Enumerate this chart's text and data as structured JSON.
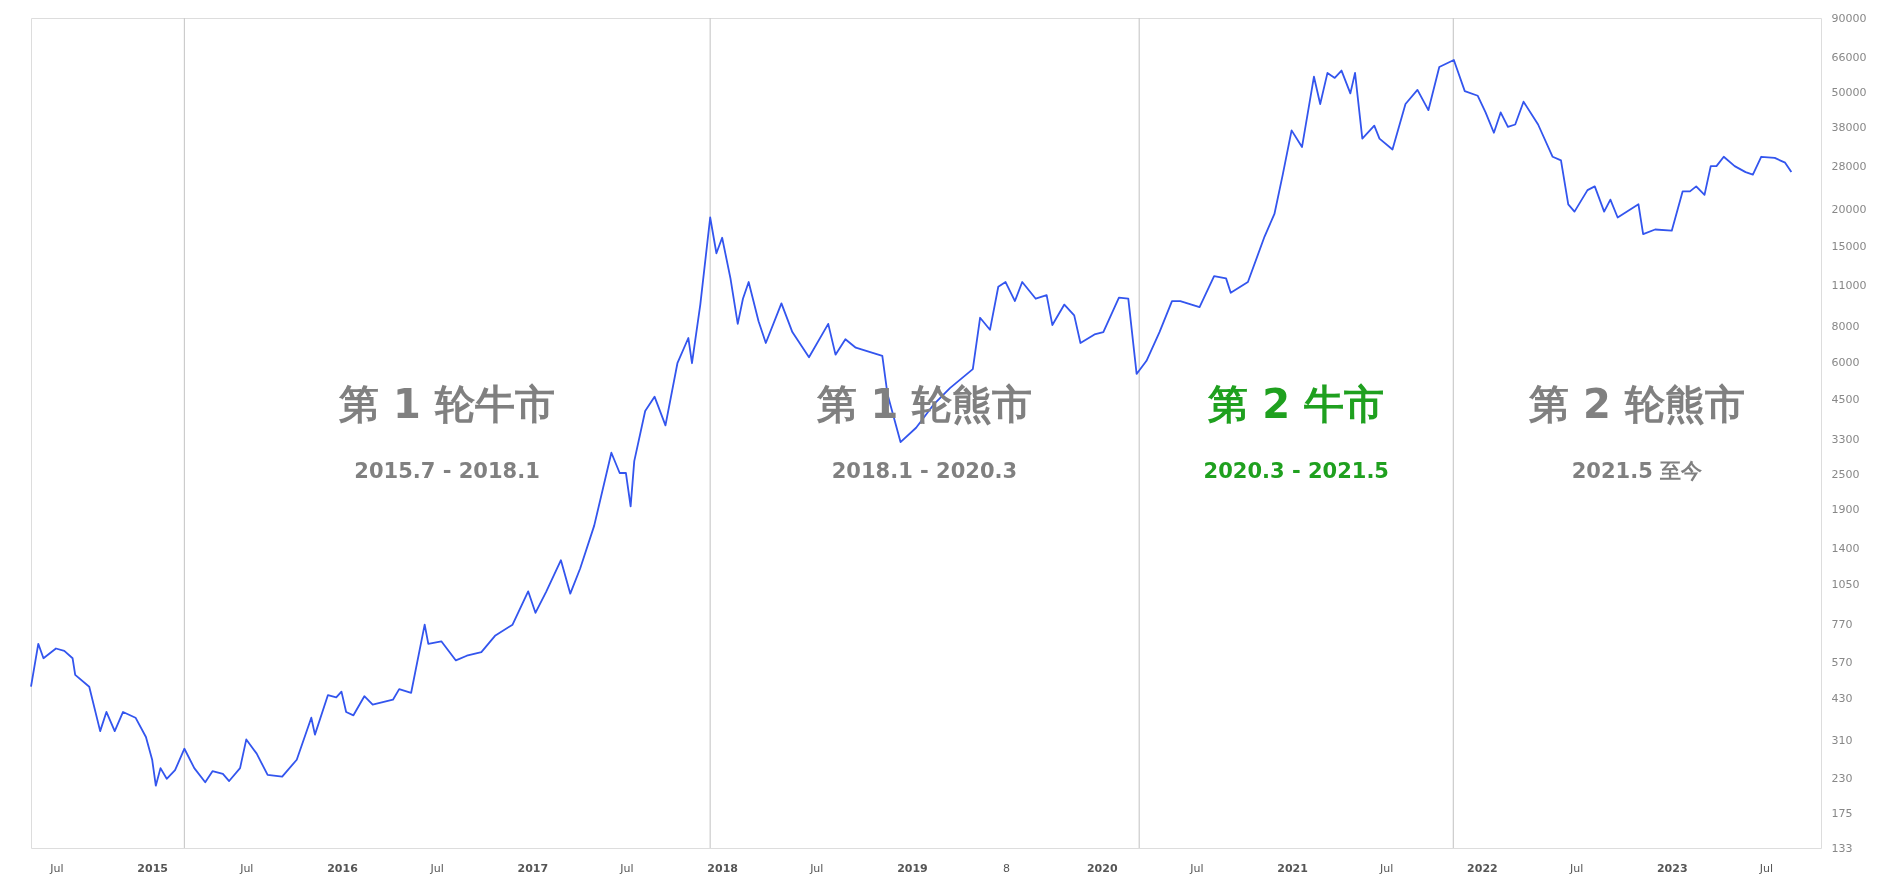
{
  "chart_data": {
    "type": "line",
    "log": "y",
    "x": [
      "2014-05-13",
      "2014-05-27",
      "2014-06-06",
      "2014-06-30",
      "2014-07-16",
      "2014-08-01",
      "2014-08-06",
      "2014-09-02",
      "2014-09-23",
      "2014-10-05",
      "2014-10-21",
      "2014-11-06",
      "2014-11-30",
      "2014-12-20",
      "2015-01-01",
      "2015-01-08",
      "2015-01-17",
      "2015-01-29",
      "2015-02-14",
      "2015-03-04",
      "2015-03-23",
      "2015-04-13",
      "2015-04-27",
      "2015-05-17",
      "2015-05-29",
      "2015-06-19",
      "2015-07-01",
      "2015-07-21",
      "2015-08-11",
      "2015-09-08",
      "2015-10-06",
      "2015-11-03",
      "2015-11-10",
      "2015-12-05",
      "2015-12-21",
      "2015-12-31",
      "2016-01-09",
      "2016-01-23",
      "2016-02-13",
      "2016-02-29",
      "2016-04-08",
      "2016-04-20",
      "2016-05-13",
      "2016-06-08",
      "2016-06-15",
      "2016-07-10",
      "2016-08-07",
      "2016-08-28",
      "2016-09-25",
      "2016-10-22",
      "2016-11-24",
      "2016-12-24",
      "2017-01-07",
      "2017-01-28",
      "2017-02-25",
      "2017-03-15",
      "2017-04-03",
      "2017-04-30",
      "2017-06-02",
      "2017-06-18",
      "2017-06-30",
      "2017-07-09",
      "2017-07-16",
      "2017-08-06",
      "2017-08-24",
      "2017-09-14",
      "2017-10-07",
      "2017-10-28",
      "2017-11-04",
      "2017-11-20",
      "2017-12-09",
      "2017-12-21",
      "2018-01-01",
      "2018-01-17",
      "2018-01-31",
      "2018-02-10",
      "2018-02-21",
      "2018-03-12",
      "2018-03-26",
      "2018-04-25",
      "2018-05-16",
      "2018-06-17",
      "2018-07-24",
      "2018-08-07",
      "2018-08-26",
      "2018-09-15",
      "2018-11-05",
      "2018-11-15",
      "2018-12-10",
      "2019-01-09",
      "2019-02-11",
      "2019-03-15",
      "2019-04-28",
      "2019-05-12",
      "2019-05-31",
      "2019-06-16",
      "2019-06-30",
      "2019-07-18",
      "2019-08-01",
      "2019-08-27",
      "2019-09-17",
      "2019-09-28",
      "2019-10-21",
      "2019-11-09",
      "2019-11-21",
      "2019-12-18",
      "2020-01-04",
      "2020-02-03",
      "2020-02-21",
      "2020-03-08",
      "2020-03-27",
      "2020-04-21",
      "2020-05-15",
      "2020-05-31",
      "2020-07-07",
      "2020-08-04",
      "2020-08-27",
      "2020-09-05",
      "2020-10-08",
      "2020-11-09",
      "2020-11-28",
      "2020-12-14",
      "2020-12-31",
      "2021-01-20",
      "2021-02-12",
      "2021-02-24",
      "2021-03-10",
      "2021-03-24",
      "2021-04-06",
      "2021-04-23",
      "2021-05-02",
      "2021-05-16",
      "2021-06-08",
      "2021-06-18",
      "2021-07-13",
      "2021-08-07",
      "2021-08-30",
      "2021-09-20",
      "2021-10-11",
      "2021-11-08",
      "2021-11-29",
      "2021-12-24",
      "2022-01-08",
      "2022-01-24",
      "2022-02-06",
      "2022-02-20",
      "2022-03-06",
      "2022-03-22",
      "2022-04-19",
      "2022-05-17",
      "2022-06-02",
      "2022-06-16",
      "2022-06-28",
      "2022-07-23",
      "2022-08-06",
      "2022-08-24",
      "2022-09-05",
      "2022-09-19",
      "2022-10-29",
      "2022-11-07",
      "2022-11-30",
      "2023-01-01",
      "2023-01-22",
      "2023-02-05",
      "2023-02-17",
      "2023-03-05",
      "2023-03-17",
      "2023-03-28",
      "2023-04-11",
      "2023-05-02",
      "2023-05-23",
      "2023-06-06",
      "2023-06-22",
      "2023-07-18",
      "2023-08-07",
      "2023-08-19"
    ],
    "series": [
      {
        "color": "#3355ee",
        "values": [
          472,
          661,
          590,
          637,
          625,
          590,
          518,
          472,
          333,
          387,
          333,
          387,
          370,
          318,
          266,
          217,
          249,
          229,
          245,
          290,
          249,
          223,
          243,
          238,
          225,
          249,
          312,
          279,
          236,
          233,
          266,
          370,
          324,
          442,
          434,
          454,
          387,
          377,
          438,
          410,
          426,
          463,
          450,
          768,
          661,
          674,
          580,
          602,
          619,
          706,
          768,
          998,
          843,
          998,
          1274,
          980,
          1194,
          1672,
          2963,
          2527,
          2527,
          1944,
          2774,
          4114,
          4603,
          3675,
          5984,
          7295,
          5984,
          9484,
          18793,
          14190,
          16030,
          11650,
          8150,
          9930,
          11320,
          8320,
          7015,
          9570,
          7640,
          6270,
          8150,
          6400,
          7225,
          6760,
          6340,
          4690,
          3222,
          3606,
          4313,
          4920,
          5714,
          8550,
          7780,
          10910,
          11320,
          9750,
          11320,
          9930,
          10210,
          8075,
          9484,
          8710,
          7015,
          7500,
          7640,
          10020,
          9930,
          5500,
          6100,
          7640,
          9750,
          9750,
          9300,
          11860,
          11650,
          10400,
          11320,
          16180,
          19320,
          26300,
          37240,
          32660,
          56760,
          45810,
          58480,
          56230,
          59570,
          49780,
          58480,
          34910,
          38650,
          34910,
          32060,
          45810,
          51170,
          43650,
          61240,
          64710,
          50700,
          48870,
          42870,
          36560,
          42870,
          38280,
          39000,
          46650,
          39000,
          30270,
          29440,
          20840,
          19680,
          23290,
          23990,
          19680,
          21630,
          18790,
          20840,
          16480,
          17100,
          16940,
          23070,
          23070,
          23990,
          22440,
          28120,
          28120,
          30270,
          28120,
          26840,
          26300,
          30270,
          30000,
          28900,
          26840
        ]
      }
    ],
    "xlim": [
      "2014-05-13",
      "2023-10-15"
    ],
    "xticks": [
      {
        "value": "2014-07-01",
        "label": "Jul"
      },
      {
        "value": "2015-01-01",
        "label": "2015"
      },
      {
        "value": "2015-07-01",
        "label": "Jul"
      },
      {
        "value": "2016-01-01",
        "label": "2016"
      },
      {
        "value": "2016-07-01",
        "label": "Jul"
      },
      {
        "value": "2017-01-01",
        "label": "2017"
      },
      {
        "value": "2017-07-01",
        "label": "Jul"
      },
      {
        "value": "2018-01-01",
        "label": "2018"
      },
      {
        "value": "2018-07-01",
        "label": "Jul"
      },
      {
        "value": "2019-01-01",
        "label": "2019"
      },
      {
        "value": "2019-07-01",
        "label": "8"
      },
      {
        "value": "2020-01-01",
        "label": "2020"
      },
      {
        "value": "2020-07-01",
        "label": "Jul"
      },
      {
        "value": "2021-01-01",
        "label": "2021"
      },
      {
        "value": "2021-07-01",
        "label": "Jul"
      },
      {
        "value": "2022-01-01",
        "label": "2022"
      },
      {
        "value": "2022-07-01",
        "label": "Jul"
      },
      {
        "value": "2023-01-01",
        "label": "2023"
      },
      {
        "value": "2023-07-01",
        "label": "Jul"
      }
    ],
    "ylim": [
      133,
      90000
    ],
    "yticks": [
      133,
      175,
      230,
      310,
      430,
      570,
      770,
      1050,
      1400,
      1900,
      2500,
      3300,
      4500,
      6000,
      8000,
      11000,
      15000,
      20000,
      28000,
      38000,
      50000,
      66000,
      90000
    ],
    "ref_lines": [
      {
        "axis": "x",
        "value": "2015-03-04",
        "color": "#cccccc"
      },
      {
        "axis": "x",
        "value": "2017-12-09",
        "color": "#cccccc"
      },
      {
        "axis": "x",
        "value": "2020-03-13",
        "color": "#cccccc"
      },
      {
        "axis": "x",
        "value": "2021-11-07",
        "color": "#cccccc"
      }
    ],
    "annotations": [
      "第 1 轮牛市",
      "2015.7 - 2018.1",
      "第 1 轮熊市",
      "2018.1 - 2020.3",
      "第 2 牛市",
      "2020.3 - 2021.5",
      "第 2 轮熊市",
      "2021.5 至今"
    ]
  }
}
